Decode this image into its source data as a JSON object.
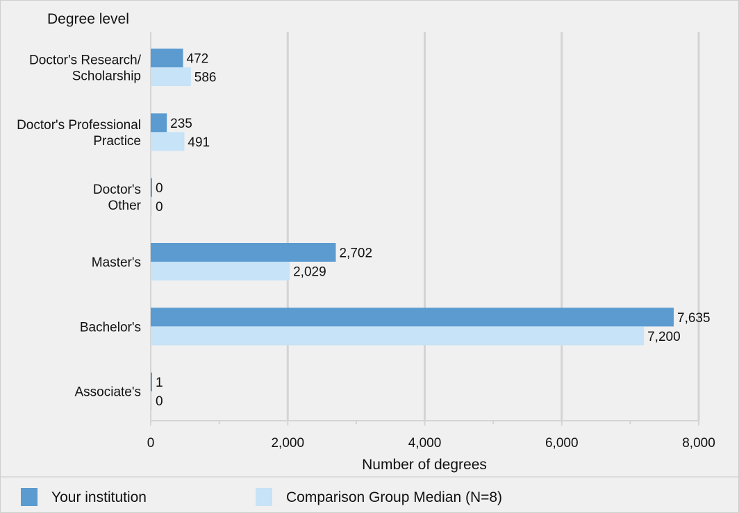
{
  "chart_data": {
    "type": "bar",
    "orientation": "horizontal",
    "title": "",
    "ylabel": "Degree level",
    "xlabel": "Number of degrees",
    "categories": [
      [
        "Doctor's Research/",
        "Scholarship"
      ],
      [
        "Doctor's Professional",
        "Practice"
      ],
      [
        "Doctor's",
        "Other"
      ],
      [
        "Master's"
      ],
      [
        "Bachelor's"
      ],
      [
        "Associate's"
      ]
    ],
    "series": [
      {
        "name": "Your institution",
        "color": "#5b9bd0",
        "values": [
          472,
          235,
          0,
          2702,
          7635,
          1
        ],
        "labels": [
          "472",
          "235",
          "0",
          "2,702",
          "7,635",
          "1"
        ]
      },
      {
        "name": "Comparison Group Median (N=8)",
        "color": "#c6e3f7",
        "values": [
          586,
          491,
          0,
          2029,
          7200,
          0
        ],
        "labels": [
          "586",
          "491",
          "0",
          "2,029",
          "7,200",
          "0"
        ]
      }
    ],
    "xlim": [
      0,
      8000
    ],
    "xticks": [
      0,
      2000,
      4000,
      6000,
      8000
    ],
    "xtick_labels": [
      "0",
      "2,000",
      "4,000",
      "6,000",
      "8,000"
    ],
    "grid": true,
    "legend_position": "bottom"
  }
}
